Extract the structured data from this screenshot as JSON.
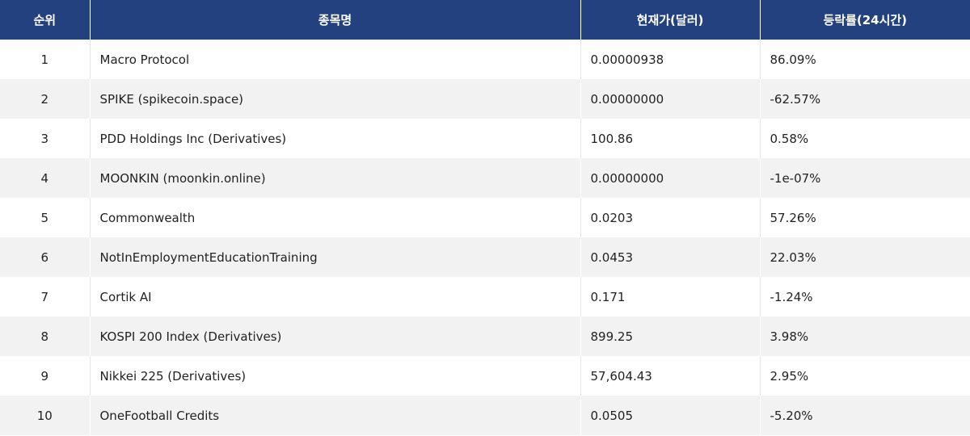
{
  "table": {
    "headers": {
      "rank": "순위",
      "name": "종목명",
      "price": "현재가(달러)",
      "change": "등락률(24시간)"
    },
    "rows": [
      {
        "rank": "1",
        "name": "Macro Protocol",
        "price": "0.00000938",
        "change": "86.09%"
      },
      {
        "rank": "2",
        "name": "SPIKE (spikecoin.space)",
        "price": "0.00000000",
        "change": "-62.57%"
      },
      {
        "rank": "3",
        "name": "PDD Holdings Inc (Derivatives)",
        "price": "100.86",
        "change": "0.58%"
      },
      {
        "rank": "4",
        "name": "MOONKIN (moonkin.online)",
        "price": "0.00000000",
        "change": "-1e-07%"
      },
      {
        "rank": "5",
        "name": "Commonwealth",
        "price": "0.0203",
        "change": "57.26%"
      },
      {
        "rank": "6",
        "name": "NotInEmploymentEducationTraining",
        "price": "0.0453",
        "change": "22.03%"
      },
      {
        "rank": "7",
        "name": "Cortik AI",
        "price": "0.171",
        "change": "-1.24%"
      },
      {
        "rank": "8",
        "name": "KOSPI 200 Index (Derivatives)",
        "price": "899.25",
        "change": "3.98%"
      },
      {
        "rank": "9",
        "name": "Nikkei 225 (Derivatives)",
        "price": "57,604.43",
        "change": "2.95%"
      },
      {
        "rank": "10",
        "name": "OneFootball Credits",
        "price": "0.0505",
        "change": "-5.20%"
      }
    ]
  },
  "colors": {
    "header_bg": "#24417f",
    "header_text": "#ffffff",
    "row_alt_bg": "#f2f2f2"
  }
}
